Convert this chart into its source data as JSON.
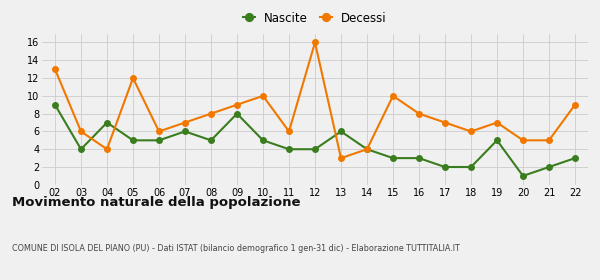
{
  "years": [
    "02",
    "03",
    "04",
    "05",
    "06",
    "07",
    "08",
    "09",
    "10",
    "11",
    "12",
    "13",
    "14",
    "15",
    "16",
    "17",
    "18",
    "19",
    "20",
    "21",
    "22"
  ],
  "nascite": [
    9,
    4,
    7,
    5,
    5,
    6,
    5,
    8,
    5,
    4,
    4,
    6,
    4,
    3,
    3,
    2,
    2,
    5,
    1,
    2,
    3
  ],
  "decessi": [
    13,
    6,
    4,
    12,
    6,
    7,
    8,
    9,
    10,
    6,
    16,
    3,
    4,
    10,
    8,
    7,
    6,
    7,
    5,
    5,
    9
  ],
  "nascite_color": "#3a7d1e",
  "decessi_color": "#f07800",
  "bg_color": "#f0f0f0",
  "grid_color": "#cccccc",
  "title": "Movimento naturale della popolazione",
  "subtitle": "COMUNE DI ISOLA DEL PIANO (PU) - Dati ISTAT (bilancio demografico 1 gen-31 dic) - Elaborazione TUTTITALIA.IT",
  "legend_nascite": "Nascite",
  "legend_decessi": "Decessi",
  "ylim": [
    0,
    17
  ],
  "yticks": [
    0,
    2,
    4,
    6,
    8,
    10,
    12,
    14,
    16
  ],
  "marker_size": 4,
  "line_width": 1.5
}
